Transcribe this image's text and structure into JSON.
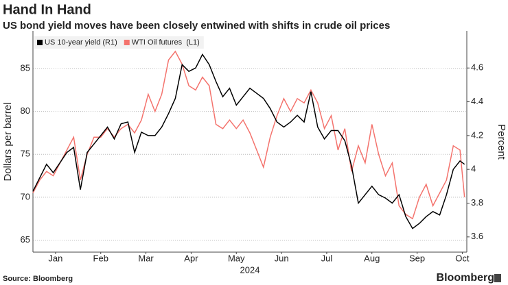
{
  "chart_data": {
    "type": "line",
    "title": "Hand In Hand",
    "subtitle": "US bond yield moves have been closely entwined with shifts in crude oil prices",
    "ylabel": "Dollars per barrel",
    "y2label": "Percent",
    "xlabel": "2024",
    "source": "Source: Bloomberg",
    "brand": "Bloomberg",
    "legend": "top-left",
    "grid": true,
    "x": [
      0,
      0.15,
      0.3,
      0.45,
      0.6,
      0.75,
      0.9,
      1.05,
      1.2,
      1.35,
      1.5,
      1.65,
      1.8,
      1.95,
      2.1,
      2.25,
      2.4,
      2.55,
      2.7,
      2.85,
      3,
      3.15,
      3.3,
      3.45,
      3.6,
      3.75,
      3.9,
      4.05,
      4.2,
      4.35,
      4.5,
      4.65,
      4.8,
      4.95,
      5.1,
      5.25,
      5.4,
      5.55,
      5.7,
      5.85,
      6,
      6.15,
      6.3,
      6.45,
      6.6,
      6.75,
      6.9,
      7.05,
      7.2,
      7.35,
      7.5,
      7.65,
      7.8,
      7.95,
      8.1,
      8.25,
      8.4,
      8.55,
      8.7,
      8.85,
      9,
      9.15,
      9.3,
      9.45,
      9.55
    ],
    "xlim": [
      0,
      9.6
    ],
    "xticks": [
      {
        "value": 0.5,
        "label": "Jan"
      },
      {
        "value": 1.5,
        "label": "Feb"
      },
      {
        "value": 2.5,
        "label": "Mar"
      },
      {
        "value": 3.5,
        "label": "Apr"
      },
      {
        "value": 4.5,
        "label": "May"
      },
      {
        "value": 5.5,
        "label": "Jun"
      },
      {
        "value": 6.5,
        "label": "Jul"
      },
      {
        "value": 7.5,
        "label": "Aug"
      },
      {
        "value": 8.5,
        "label": "Sep"
      },
      {
        "value": 9.5,
        "label": "Oct"
      }
    ],
    "ylim": [
      63.6,
      89.4
    ],
    "yticks": [
      65,
      70,
      75,
      80,
      85
    ],
    "y2lim": [
      3.51,
      4.82
    ],
    "y2ticks": [
      3.6,
      3.8,
      4.0,
      4.2,
      4.4,
      4.6
    ],
    "series": [
      {
        "name": "US 10-year yield (R1)",
        "color": "#000000",
        "axis": "y2",
        "values": [
          3.87,
          3.95,
          4.03,
          3.98,
          4.04,
          4.1,
          4.13,
          3.88,
          4.1,
          4.15,
          4.2,
          4.25,
          4.18,
          4.27,
          4.28,
          4.1,
          4.22,
          4.2,
          4.2,
          4.25,
          4.33,
          4.42,
          4.62,
          4.58,
          4.6,
          4.68,
          4.62,
          4.52,
          4.43,
          4.48,
          4.38,
          4.43,
          4.48,
          4.45,
          4.42,
          4.36,
          4.28,
          4.25,
          4.28,
          4.32,
          4.28,
          4.46,
          4.25,
          4.18,
          4.23,
          4.23,
          4.17,
          4.02,
          3.8,
          3.85,
          3.9,
          3.85,
          3.83,
          3.8,
          3.85,
          3.72,
          3.65,
          3.68,
          3.72,
          3.75,
          3.73,
          3.85,
          4.0,
          4.05,
          4.03
        ]
      },
      {
        "name": "WTI Oil futures  (L1)",
        "color": "#f4736d",
        "axis": "y",
        "values": [
          70.5,
          72,
          73,
          72.5,
          74,
          75.5,
          77,
          72,
          75,
          77,
          77,
          78,
          77,
          78,
          78.5,
          77.5,
          79,
          82,
          80,
          82,
          86,
          87,
          85.5,
          83,
          82.5,
          84,
          83,
          78.5,
          78,
          79,
          78,
          79,
          77.5,
          75.5,
          73.5,
          77,
          79.5,
          81.5,
          80,
          81.5,
          81,
          82.5,
          81,
          78,
          79.5,
          75.5,
          78,
          73,
          76,
          74,
          78.5,
          75,
          72.5,
          74,
          69,
          68,
          67.5,
          70,
          71.5,
          69,
          70.5,
          72,
          76,
          75.5,
          70
        ]
      }
    ]
  }
}
